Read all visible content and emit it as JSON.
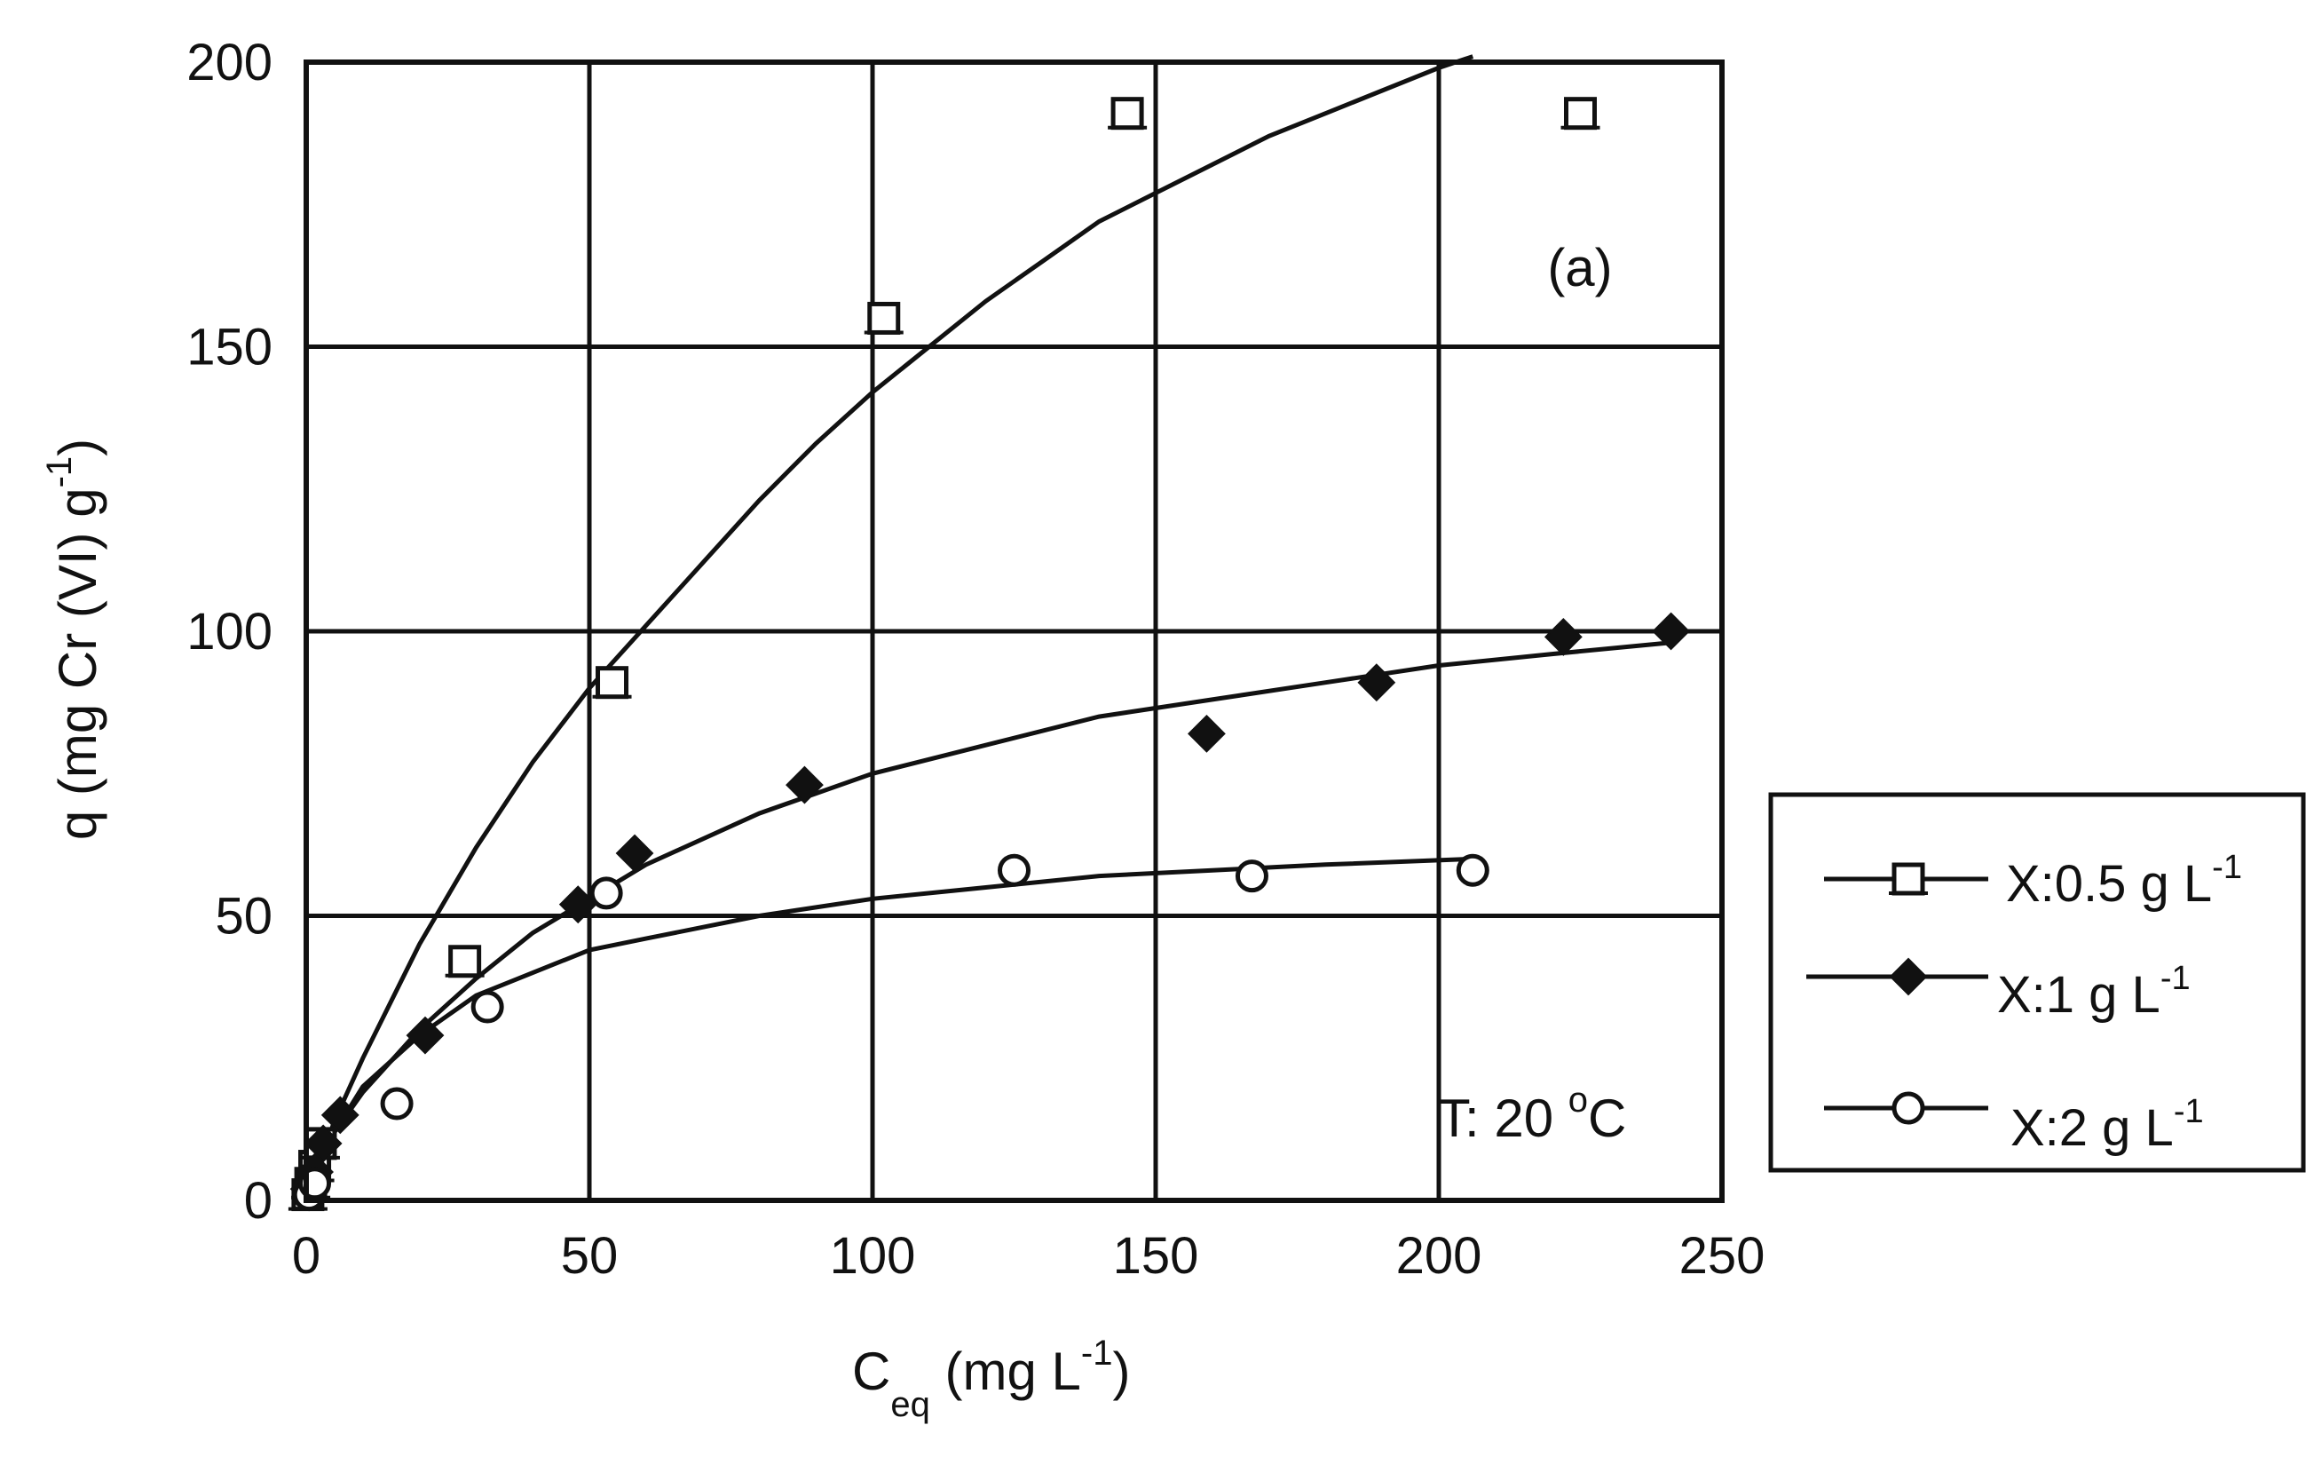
{
  "chart_data": {
    "type": "scatter",
    "panel_label": "(a)",
    "condition_label": "T: 20 °C",
    "condition_label_parts": {
      "prefix": "T: 20 ",
      "sup": "o",
      "suffix": "C"
    },
    "xlabel": "C_eq (mg L^-1)",
    "xlabel_parts": {
      "main": "C",
      "sub": "eq",
      "rest": " (mg L",
      "sup": "-1",
      "close": ")"
    },
    "ylabel": "q (mg Cr (VI) g^-1)",
    "ylabel_parts": {
      "main": "q (mg Cr (VI) g",
      "sup": "-1",
      "close": ")"
    },
    "xlim": [
      0,
      250
    ],
    "ylim": [
      0,
      200
    ],
    "xticks": [
      0,
      50,
      100,
      150,
      200,
      250
    ],
    "yticks": [
      0,
      50,
      100,
      150,
      200
    ],
    "grid": true,
    "legend_position": "outside-right",
    "series": [
      {
        "name": "X:0.5 g L-1",
        "legend_parts": {
          "main": "X:0.5 g L",
          "sup": "-1"
        },
        "marker": "square-open",
        "x": [
          0.3,
          0.8,
          1.5,
          2.5,
          28,
          54,
          102,
          145,
          225
        ],
        "y": [
          1,
          3,
          6,
          10,
          42,
          91,
          155,
          191,
          191
        ],
        "fit": [
          [
            0,
            0
          ],
          [
            5,
            14
          ],
          [
            10,
            25
          ],
          [
            20,
            45
          ],
          [
            30,
            62
          ],
          [
            40,
            77
          ],
          [
            50,
            90
          ],
          [
            60,
            101
          ],
          [
            70,
            112
          ],
          [
            80,
            123
          ],
          [
            90,
            133
          ],
          [
            100,
            142
          ],
          [
            110,
            150
          ],
          [
            120,
            158
          ],
          [
            130,
            165
          ],
          [
            140,
            172
          ],
          [
            150,
            177
          ],
          [
            160,
            182
          ],
          [
            170,
            187
          ],
          [
            180,
            191
          ],
          [
            190,
            195
          ],
          [
            200,
            199
          ],
          [
            206,
            201
          ]
        ]
      },
      {
        "name": "X:1 g L-1",
        "legend_parts": {
          "main": "X:1 g L",
          "sup": "-1"
        },
        "marker": "diamond-filled",
        "x": [
          0.5,
          1.5,
          3,
          6,
          21,
          48,
          58,
          88,
          159,
          189,
          222,
          241
        ],
        "y": [
          2,
          5,
          10,
          15,
          29,
          52,
          61,
          73,
          82,
          91,
          99,
          100
        ],
        "fit": [
          [
            0,
            0
          ],
          [
            5,
            12
          ],
          [
            10,
            19
          ],
          [
            20,
            30
          ],
          [
            30,
            39
          ],
          [
            40,
            47
          ],
          [
            50,
            53
          ],
          [
            60,
            59
          ],
          [
            80,
            68
          ],
          [
            100,
            75
          ],
          [
            120,
            80
          ],
          [
            140,
            85
          ],
          [
            160,
            88
          ],
          [
            180,
            91
          ],
          [
            200,
            94
          ],
          [
            220,
            96
          ],
          [
            241,
            98
          ]
        ]
      },
      {
        "name": "X:2 g L-1",
        "legend_parts": {
          "main": "X:2 g L",
          "sup": "-1"
        },
        "marker": "circle-open",
        "x": [
          0.5,
          1.5,
          16,
          32,
          53,
          125,
          167,
          206
        ],
        "y": [
          1,
          3,
          17,
          34,
          54,
          58,
          57,
          58
        ],
        "fit": [
          [
            0,
            0
          ],
          [
            5,
            12
          ],
          [
            10,
            20
          ],
          [
            20,
            29
          ],
          [
            30,
            36
          ],
          [
            40,
            40
          ],
          [
            50,
            44
          ],
          [
            60,
            46
          ],
          [
            80,
            50
          ],
          [
            100,
            53
          ],
          [
            120,
            55
          ],
          [
            140,
            57
          ],
          [
            160,
            58
          ],
          [
            180,
            59
          ],
          [
            206,
            60
          ]
        ]
      }
    ]
  }
}
